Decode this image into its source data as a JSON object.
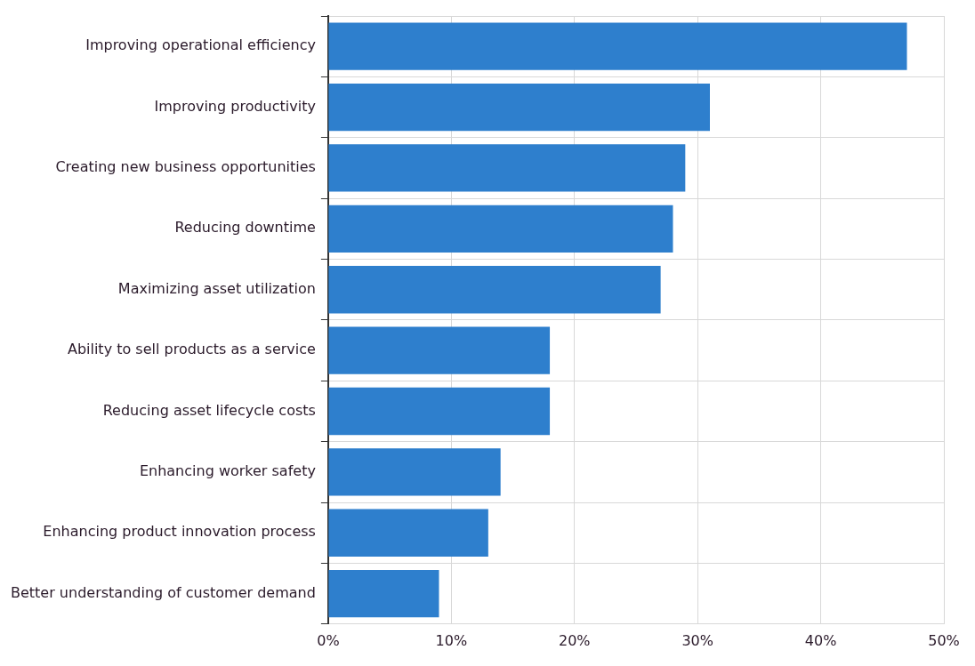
{
  "chart_data": {
    "type": "bar",
    "orientation": "horizontal",
    "categories": [
      "Improving operational efficiency",
      "Improving productivity",
      "Creating new business opportunities",
      "Reducing downtime",
      "Maximizing asset utilization",
      "Ability to sell products as a service",
      "Reducing asset lifecycle costs",
      "Enhancing worker safety",
      "Enhancing product innovation process",
      "Better understanding of customer demand"
    ],
    "values": [
      47,
      31,
      29,
      28,
      27,
      18,
      18,
      14,
      13,
      9
    ],
    "color": "#2e7fcd",
    "xlim": [
      0,
      50
    ],
    "xticks": [
      {
        "value": 0,
        "label": "0%"
      },
      {
        "value": 10,
        "label": "10%"
      },
      {
        "value": 20,
        "label": "20%"
      },
      {
        "value": 30,
        "label": "30%"
      },
      {
        "value": 40,
        "label": "40%"
      },
      {
        "value": 50,
        "label": "50%"
      }
    ],
    "grid": true,
    "legend": false
  }
}
